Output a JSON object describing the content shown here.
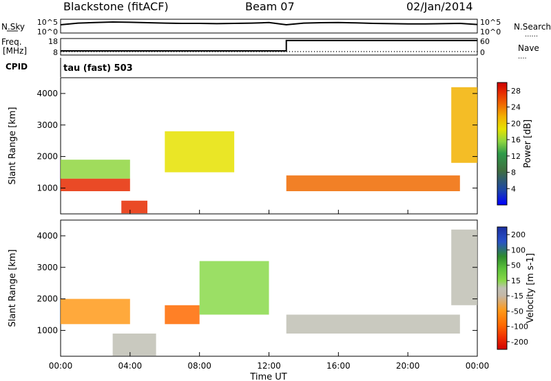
{
  "header": {
    "station": "Blackstone (fitACF)",
    "beam": "Beam 07",
    "date": "02/Jan/2014"
  },
  "panel_labels": {
    "nsky": "N.Sky",
    "nsearch": "N.Search",
    "freq_line1": "Freq.",
    "freq_line2": "[MHz]",
    "nave": "Nave",
    "cpid": "CPID",
    "cpid_value": "tau (fast) 503"
  },
  "colors": {
    "scale": [
      "#0000ff",
      "#1d46a8",
      "#3f6e3f",
      "#2e9a4a",
      "#8fd640",
      "#e6e200",
      "#f2b100",
      "#f06a00",
      "#e62a00",
      "#cc0000"
    ],
    "velocity_scale": [
      "#1b2fa0",
      "#2952c8",
      "#2e8b2e",
      "#5cc13a",
      "#8ad94a",
      "#c0c0b4",
      "#c4b8a8",
      "#ff9a1a",
      "#ff6a00",
      "#f03000",
      "#d00000"
    ]
  },
  "chart_data": [
    {
      "type": "line",
      "name": "noise",
      "ylabel_left": "N.Sky",
      "ylabel_right": "N.Search",
      "left_ticks": [
        "10^5",
        "10^0"
      ],
      "right_ticks": [
        "10^5",
        "10^0"
      ],
      "x": [
        0,
        1,
        2,
        3,
        4,
        5,
        6,
        7,
        8,
        9,
        10,
        11,
        12,
        13,
        14,
        15,
        16,
        17,
        18,
        19,
        20,
        21,
        22,
        23,
        24
      ],
      "series": [
        {
          "values": [
            0.6,
            0.72,
            0.76,
            0.8,
            0.78,
            0.75,
            0.72,
            0.7,
            0.7,
            0.68,
            0.7,
            0.72,
            0.76,
            0.6,
            0.72,
            0.75,
            0.76,
            0.74,
            0.7,
            0.68,
            0.66,
            0.66,
            0.68,
            0.7,
            0.62
          ]
        }
      ]
    },
    {
      "type": "line",
      "name": "frequency",
      "ylabel_left": "Freq. [MHz]",
      "ylabel_right": "Nave",
      "left_ticks": [
        "18",
        "8"
      ],
      "right_ticks": [
        "60",
        "0"
      ],
      "x": [
        0,
        13,
        13,
        24
      ],
      "series": [
        {
          "values": [
            10.5,
            10.5,
            16.8,
            16.8
          ]
        }
      ]
    },
    {
      "type": "heatmap",
      "name": "power",
      "title": "tau (fast) 503",
      "ylabel": "Slant Range [km]",
      "xlabel": "Time UT",
      "xlim": [
        0,
        24
      ],
      "ylim": [
        180,
        4500
      ],
      "x_ticks": [
        "00:00",
        "04:00",
        "08:00",
        "12:00",
        "16:00",
        "20:00",
        "00:00"
      ],
      "y_ticks": [
        1000,
        2000,
        3000,
        4000
      ],
      "colorbar": {
        "label": "Power [dB]",
        "tick_labels": [
          "4",
          "8",
          "12",
          "16",
          "20",
          "24",
          "28"
        ],
        "range": [
          0,
          30
        ]
      },
      "features": [
        {
          "x_start": 0,
          "x_end": 4,
          "range_start": 900,
          "range_end": 1300,
          "value": 26
        },
        {
          "x_start": 0,
          "x_end": 4,
          "range_start": 1300,
          "range_end": 1900,
          "value": 12
        },
        {
          "x_start": 3.5,
          "x_end": 5,
          "range_start": 200,
          "range_end": 600,
          "value": 28
        },
        {
          "x_start": 6,
          "x_end": 10,
          "range_start": 1500,
          "range_end": 2800,
          "value": 18
        },
        {
          "x_start": 13,
          "x_end": 23,
          "range_start": 900,
          "range_end": 1400,
          "value": 24
        },
        {
          "x_start": 22.5,
          "x_end": 24,
          "range_start": 1800,
          "range_end": 4200,
          "value": 20
        }
      ]
    },
    {
      "type": "heatmap",
      "name": "velocity",
      "ylabel": "Slant Range [km]",
      "xlabel": "Time UT",
      "xlim": [
        0,
        24
      ],
      "ylim": [
        180,
        4500
      ],
      "x_ticks": [
        "00:00",
        "04:00",
        "08:00",
        "12:00",
        "16:00",
        "20:00",
        "00:00"
      ],
      "y_ticks": [
        1000,
        2000,
        3000,
        4000
      ],
      "colorbar": {
        "label": "Velocity [m s-1]",
        "tick_labels": [
          "200",
          "100",
          "50",
          "15",
          "-15",
          "-50",
          "-100",
          "-200"
        ],
        "range": [
          -250,
          250
        ]
      },
      "features": [
        {
          "x_start": 0,
          "x_end": 4,
          "range_start": 1200,
          "range_end": 2000,
          "value": -80
        },
        {
          "x_start": 3,
          "x_end": 5.5,
          "range_start": 200,
          "range_end": 900,
          "value": 0
        },
        {
          "x_start": 6,
          "x_end": 8,
          "range_start": 1200,
          "range_end": 1800,
          "value": -150
        },
        {
          "x_start": 8,
          "x_end": 12,
          "range_start": 1500,
          "range_end": 3200,
          "value": 30
        },
        {
          "x_start": 13,
          "x_end": 23,
          "range_start": 900,
          "range_end": 1500,
          "value": 0
        },
        {
          "x_start": 22.5,
          "x_end": 24,
          "range_start": 1800,
          "range_end": 4200,
          "value": -20
        }
      ]
    }
  ],
  "xaxis_label": "Time UT"
}
